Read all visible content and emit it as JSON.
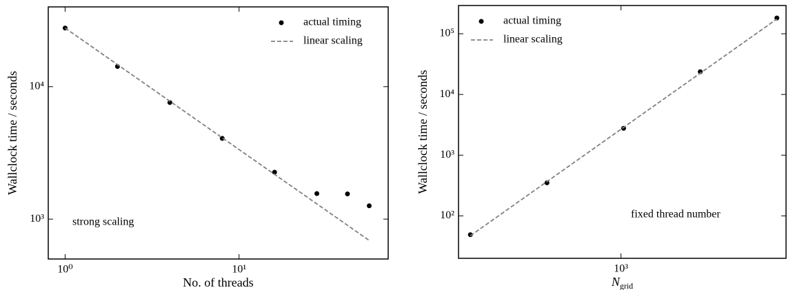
{
  "chart_data": [
    {
      "type": "line",
      "x_label": "No.  of threads",
      "y_label": "Wallclock time / seconds",
      "annotation": "strong scaling",
      "xscale": "log",
      "yscale": "log",
      "xlim": [
        0.8,
        72
      ],
      "ylim": [
        500,
        40000
      ],
      "xticks": [
        {
          "value": 1,
          "label": "10⁰"
        },
        {
          "value": 10,
          "label": "10¹"
        }
      ],
      "yticks": [
        {
          "value": 1000,
          "label": "10³"
        },
        {
          "value": 10000,
          "label": "10⁴"
        }
      ],
      "legend": "upper right",
      "series": [
        {
          "name": "actual timing",
          "color": "#000000",
          "style": "markers",
          "x": [
            1,
            2,
            4,
            8,
            16,
            28,
            42,
            56
          ],
          "values": [
            27700,
            14200,
            7590,
            4070,
            2260,
            1560,
            1550,
            1260
          ]
        },
        {
          "name": "linear scaling",
          "color": "#808080",
          "style": "dashed",
          "x": [
            1,
            56
          ],
          "values": [
            27700,
            690
          ]
        }
      ]
    },
    {
      "type": "line",
      "x_label": "N",
      "x_label_sub": "grid",
      "y_label": "Wallclock time / seconds",
      "annotation": "fixed thread number",
      "xscale": "log",
      "yscale": "log",
      "xlim": [
        230,
        4450
      ],
      "ylim": [
        20,
        292000
      ],
      "xticks": [
        {
          "value": 1000,
          "label": "10³"
        }
      ],
      "yticks": [
        {
          "value": 100,
          "label": "10²"
        },
        {
          "value": 1000,
          "label": "10³"
        },
        {
          "value": 10000,
          "label": "10⁴"
        },
        {
          "value": 100000,
          "label": "10⁵"
        }
      ],
      "legend": "upper left",
      "series": [
        {
          "name": "actual timing",
          "color": "#000000",
          "style": "markers",
          "x": [
            256,
            512,
            1024,
            2048,
            4096
          ],
          "values": [
            49,
            351,
            2770,
            23700,
            182000
          ]
        },
        {
          "name": "linear scaling",
          "color": "#808080",
          "style": "dashed",
          "x": [
            256,
            4096
          ],
          "values": [
            47,
            175000
          ]
        }
      ]
    }
  ]
}
